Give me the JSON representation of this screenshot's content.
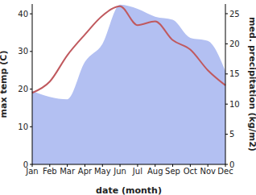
{
  "chart_data": {
    "type": "line",
    "categories": [
      "Jan",
      "Feb",
      "Mar",
      "Apr",
      "May",
      "Jun",
      "Jul",
      "Aug",
      "Sep",
      "Oct",
      "Nov",
      "Dec"
    ],
    "x_label": "date (month)",
    "y_label": "max temp (C)",
    "y2_label": "med. precipitation (kg/m2)",
    "ylim": [
      0,
      42.6
    ],
    "yticks": [
      0,
      10,
      20,
      30,
      40
    ],
    "y2lim": [
      0,
      26.6
    ],
    "y2ticks": [
      0,
      5,
      10,
      15,
      20,
      25
    ],
    "grid": false,
    "series": [
      {
        "name": "med. precipitation (kg/m2)",
        "type": "area",
        "axis": "y2",
        "color": "#b3c0f2",
        "values": [
          12.2,
          11.2,
          10.8,
          17,
          20,
          26.5,
          25.8,
          24.5,
          24,
          21,
          20.5,
          15.5
        ]
      },
      {
        "name": "max temp (C)",
        "type": "line",
        "axis": "y",
        "color": "#c0595e",
        "values": [
          19,
          22,
          29,
          34.5,
          39.5,
          42,
          37,
          38,
          33,
          30.5,
          25,
          21
        ]
      }
    ]
  }
}
